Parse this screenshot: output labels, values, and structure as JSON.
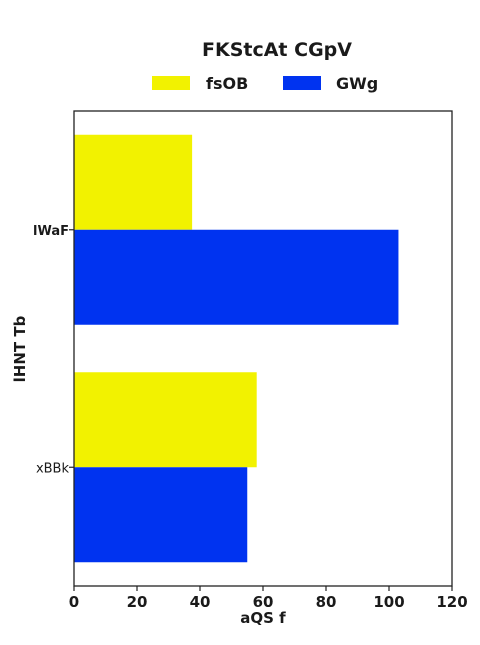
{
  "chart_data": {
    "type": "bar",
    "orientation": "horizontal",
    "title": "FKStcAt CGpV",
    "xlabel": "aQS f",
    "ylabel": "lHNT Tb",
    "categories": [
      "lWaF",
      "xBBk"
    ],
    "category_label_bold": [
      true,
      false
    ],
    "series": [
      {
        "name": "fsOB",
        "color": "#f2f200",
        "values": [
          37.5,
          58
        ]
      },
      {
        "name": "GWg",
        "color": "#0033f0",
        "values": [
          103,
          55
        ]
      }
    ],
    "xlim": [
      0,
      120
    ],
    "xticks": [
      0,
      20,
      40,
      60,
      80,
      100,
      120
    ],
    "grid": false,
    "legend_position": "top-center"
  }
}
